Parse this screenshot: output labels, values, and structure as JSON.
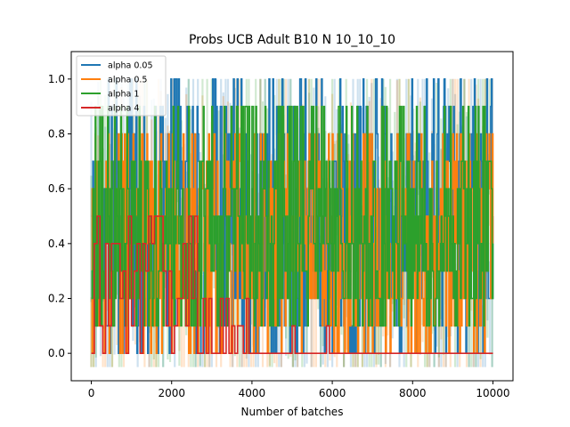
{
  "chart_data": {
    "type": "line",
    "title": "Probs UCB Adult B10 N 10_10_10",
    "xlabel": "Number of batches",
    "ylabel": "",
    "xlim": [
      -500,
      10500
    ],
    "ylim": [
      -0.1,
      1.1
    ],
    "xticks": [
      0,
      2000,
      4000,
      6000,
      8000,
      10000
    ],
    "yticks": [
      0.0,
      0.2,
      0.4,
      0.6,
      0.8,
      1.0
    ],
    "x_range": [
      0,
      10000
    ],
    "grid": false,
    "legend_position": "top-left",
    "series": [
      {
        "name": "alpha 0.05",
        "color": "#1f77b4",
        "levels": [
          0.0,
          0.1,
          0.2,
          0.3,
          0.4,
          0.5,
          0.6,
          0.7,
          0.8,
          0.9,
          1.0
        ]
      },
      {
        "name": "alpha 0.5",
        "color": "#ff7f0e",
        "levels": [
          0.0,
          0.1,
          0.2,
          0.3,
          0.4,
          0.5,
          0.6,
          0.7,
          0.8
        ]
      },
      {
        "name": "alpha 1",
        "color": "#2ca02c",
        "levels": [
          0.1,
          0.2,
          0.3,
          0.4,
          0.5,
          0.6,
          0.7,
          0.9
        ]
      },
      {
        "name": "alpha 4",
        "color": "#d62728",
        "levels": [
          0.0,
          0.1,
          0.2,
          0.3,
          0.4,
          0.5
        ]
      }
    ]
  }
}
